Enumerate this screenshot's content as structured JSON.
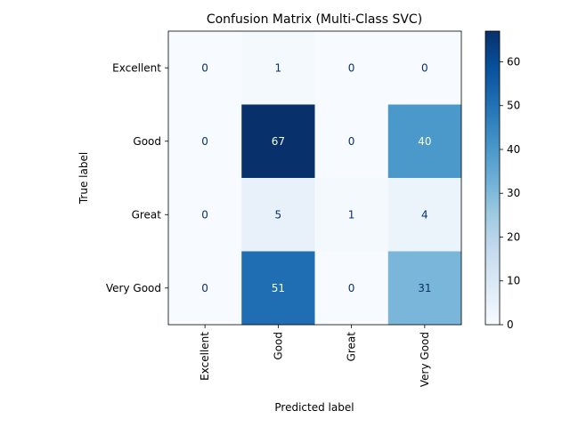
{
  "chart_data": {
    "type": "heatmap",
    "title": "Confusion Matrix (Multi-Class SVC)",
    "xlabel": "Predicted label",
    "ylabel": "True label",
    "x_categories": [
      "Excellent",
      "Good",
      "Great",
      "Very Good"
    ],
    "y_categories": [
      "Excellent",
      "Good",
      "Great",
      "Very Good"
    ],
    "values": [
      [
        0,
        1,
        0,
        0
      ],
      [
        0,
        67,
        0,
        40
      ],
      [
        0,
        5,
        1,
        4
      ],
      [
        0,
        51,
        0,
        31
      ]
    ],
    "colormap": "Blues",
    "vmin": 0,
    "vmax": 67,
    "colorbar_ticks": [
      0,
      10,
      20,
      30,
      40,
      50,
      60
    ],
    "colors": {
      "low": "#f7fbff",
      "high": "#08306b",
      "text_dark": "#08306b",
      "text_light": "#f7fbff"
    }
  }
}
